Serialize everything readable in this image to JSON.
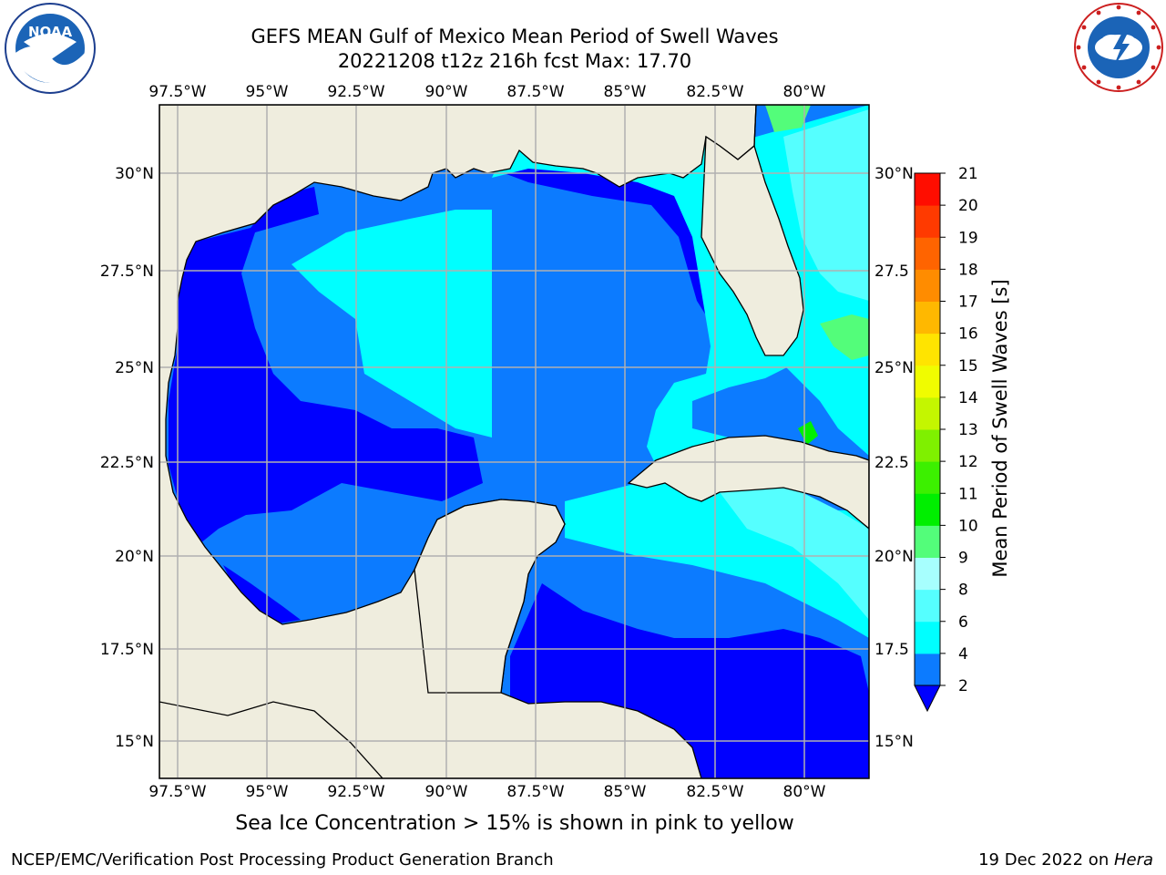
{
  "header": {
    "title_line1": "GEFS MEAN Gulf of Mexico Mean Period of Swell Waves",
    "title_line2": "20221208 t12z 216h fcst   Max: 17.70"
  },
  "logos": {
    "left": {
      "icon": "noaa-logo",
      "text": "NOAA"
    },
    "right": {
      "icon": "national-weather-service-logo"
    }
  },
  "map": {
    "lon_ticks_top": [
      "97.5°W",
      "95°W",
      "92.5°W",
      "90°W",
      "87.5°W",
      "85°W",
      "82.5°W",
      "80°W"
    ],
    "lon_ticks_bottom": [
      "97.5°W",
      "95°W",
      "92.5°W",
      "90°W",
      "87.5°W",
      "85°W",
      "82.5°W",
      "80°W"
    ],
    "lat_ticks_left": [
      "30°N",
      "27.5°N",
      "25°N",
      "22.5°N",
      "20°N",
      "17.5°N",
      "15°N"
    ],
    "lat_ticks_right": [
      "30°N",
      "27.5",
      "25°N",
      "22.5",
      "20°N",
      "17.5",
      "15°N"
    ],
    "colors": {
      "land": "#efedde",
      "c2_4": "#0c7bff",
      "c_lt2": "#0000ff",
      "c4_6": "#00ffff",
      "c6_8": "#55ffff",
      "c8_9": "#a7fffe",
      "c9_10": "#53fd7a",
      "c10_11": "#00ef00",
      "c12_13": "#7ff000",
      "c14_15": "#f0fc00",
      "c16_17": "#ffb800",
      "c17_18": "#ff8c00",
      "grid": "#b0b0b0"
    }
  },
  "colorbar": {
    "label": "Mean Period of Swell Waves [s]",
    "ticks": [
      "2",
      "4",
      "6",
      "8",
      "9",
      "10",
      "11",
      "12",
      "13",
      "14",
      "15",
      "16",
      "17",
      "18",
      "19",
      "20",
      "21"
    ],
    "colors": [
      "#0c7bff",
      "#00ffff",
      "#55ffff",
      "#a7fffe",
      "#53fd7a",
      "#00ef00",
      "#3cf000",
      "#7ff000",
      "#c4f600",
      "#f0fc00",
      "#ffe400",
      "#ffb800",
      "#ff8c00",
      "#ff6400",
      "#ff3a00",
      "#ff0d00"
    ],
    "extend_color": "#0000ff"
  },
  "annotation": "Sea Ice Concentration > 15% is shown in pink to yellow",
  "footer": {
    "left": "NCEP/EMC/Verification Post Processing Product Generation Branch",
    "right_date": "19 Dec 2022 on ",
    "right_machine": "Hera"
  }
}
